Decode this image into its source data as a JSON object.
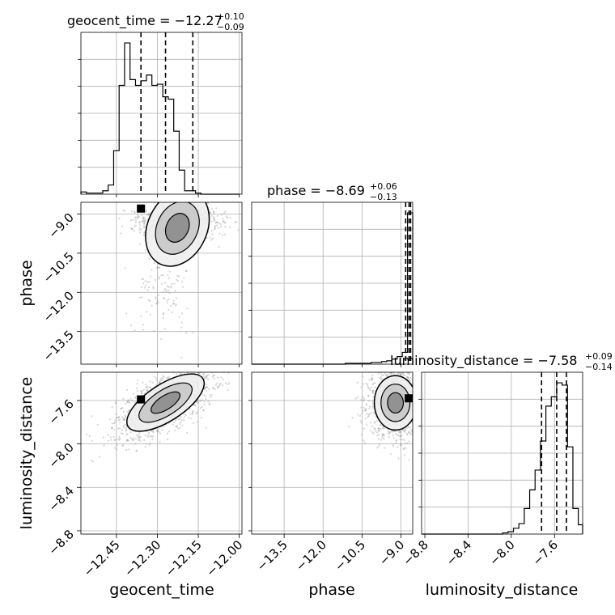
{
  "chart_data": {
    "type": "corner",
    "parameters": [
      "geocent_time",
      "phase",
      "luminosity_distance"
    ],
    "axis_labels": {
      "geocent_time": "geocent_time",
      "phase": "phase",
      "luminosity_distance": "luminosity_distance"
    },
    "titles": [
      {
        "param": "geocent_time",
        "text": "geocent_time = −12.27",
        "plus": "+0.10",
        "minus": "−0.09"
      },
      {
        "param": "phase",
        "text": "phase = −8.69",
        "plus": "+0.06",
        "minus": "−0.13"
      },
      {
        "param": "luminosity_distance",
        "text": "luminosity_distance = −7.58",
        "plus": "+0.09",
        "minus": "−0.14"
      }
    ],
    "ranges": {
      "geocent_time": [
        -12.58,
        -11.99
      ],
      "phase": [
        -14.75,
        -8.55
      ],
      "luminosity_distance": [
        -8.83,
        -7.34
      ]
    },
    "ticks": {
      "geocent_time": {
        "values": [
          -12.45,
          -12.3,
          -12.15,
          -12.0
        ],
        "labels": [
          "−12.45",
          "−12.30",
          "−12.15",
          "−12.00"
        ]
      },
      "phase": {
        "values": [
          -13.5,
          -12.0,
          -10.5,
          -9.0
        ],
        "labels": [
          "−13.5",
          "−12.0",
          "−10.5",
          "−9.0"
        ]
      },
      "luminosity_distance": {
        "values": [
          -8.8,
          -8.4,
          -8.0,
          -7.6
        ],
        "labels": [
          "−8.8",
          "−8.4",
          "−8.0",
          "−7.6"
        ]
      }
    },
    "quantiles": {
      "geocent_time": [
        -12.36,
        -12.27,
        -12.17
      ],
      "phase": [
        -8.82,
        -8.69,
        -8.63
      ],
      "luminosity_distance": [
        -7.72,
        -7.58,
        -7.49
      ]
    },
    "histograms": {
      "geocent_time": {
        "edges": [
          -12.58,
          -12.56,
          -12.54,
          -12.52,
          -12.5,
          -12.48,
          -12.46,
          -12.44,
          -12.42,
          -12.4,
          -12.38,
          -12.36,
          -12.34,
          -12.32,
          -12.3,
          -12.28,
          -12.26,
          -12.24,
          -12.22,
          -12.2,
          -12.18,
          -12.16,
          -12.14,
          -12.12,
          -12.1,
          -12.08,
          -12.06,
          -12.04,
          -12.02,
          -12.0
        ],
        "counts": [
          2,
          1,
          1,
          1,
          3,
          8,
          38,
          95,
          132,
          100,
          95,
          99,
          104,
          95,
          96,
          85,
          83,
          55,
          21,
          3,
          3,
          1,
          0,
          0,
          0,
          0,
          0,
          0,
          0
        ]
      },
      "phase": {
        "edges": [
          -14.75,
          -14.55,
          -14.35,
          -14.15,
          -13.95,
          -13.75,
          -13.55,
          -13.35,
          -13.15,
          -12.95,
          -12.75,
          -12.55,
          -12.35,
          -12.15,
          -11.95,
          -11.75,
          -11.55,
          -11.35,
          -11.15,
          -10.95,
          -10.75,
          -10.55,
          -10.35,
          -10.15,
          -9.95,
          -9.75,
          -9.55,
          -9.35,
          -9.15,
          -8.95,
          -8.75,
          -8.55
        ],
        "counts": [
          0,
          0,
          0,
          0,
          0,
          0,
          0,
          0,
          0,
          0,
          0,
          0,
          0,
          0,
          0,
          0,
          0,
          0,
          1,
          1,
          1,
          1,
          1,
          2,
          2,
          3,
          4,
          6,
          9,
          14,
          180
        ]
      },
      "luminosity_distance": {
        "edges": [
          -8.83,
          -8.78,
          -8.73,
          -8.68,
          -8.63,
          -8.58,
          -8.53,
          -8.48,
          -8.43,
          -8.38,
          -8.33,
          -8.28,
          -8.23,
          -8.18,
          -8.13,
          -8.08,
          -8.03,
          -7.98,
          -7.93,
          -7.88,
          -7.83,
          -7.78,
          -7.73,
          -7.68,
          -7.63,
          -7.58,
          -7.53,
          -7.48,
          -7.43,
          -7.38,
          -7.34
        ],
        "counts": [
          0,
          0,
          0,
          0,
          0,
          0,
          0,
          0,
          0,
          0,
          0,
          0,
          0,
          0,
          0,
          1,
          2,
          5,
          9,
          22,
          38,
          55,
          80,
          110,
          118,
          130,
          128,
          75,
          22,
          8
        ]
      }
    },
    "samples_2d": [
      {
        "x": "geocent_time",
        "y": "phase",
        "n": 1200,
        "core": {
          "x_mean": -12.22,
          "x_sd": 0.07,
          "y_mean": -9.25,
          "y_sd": 0.35
        },
        "tail": {
          "x_mean": -12.28,
          "x_sd": 0.05,
          "y_mean": -11.8,
          "y_sd": 0.9,
          "fraction": 0.12
        },
        "peak": {
          "x": -12.36,
          "y": -8.79
        }
      },
      {
        "x": "geocent_time",
        "y": "luminosity_distance",
        "n": 1500,
        "core": {
          "x_mean": -12.27,
          "x_sd": 0.09,
          "slope": 1.2,
          "y_at_mean": -7.62,
          "y_sd": 0.12
        },
        "peak": {
          "x": -12.36,
          "y": -7.59
        }
      },
      {
        "x": "phase",
        "y": "luminosity_distance",
        "n": 1500,
        "core": {
          "x_mean": -9.2,
          "x_sd": 0.5,
          "y_mean": -7.62,
          "y_sd": 0.15
        },
        "peak": {
          "x": -8.7,
          "y": -7.58
        }
      }
    ],
    "grid": true,
    "legend": "none"
  }
}
